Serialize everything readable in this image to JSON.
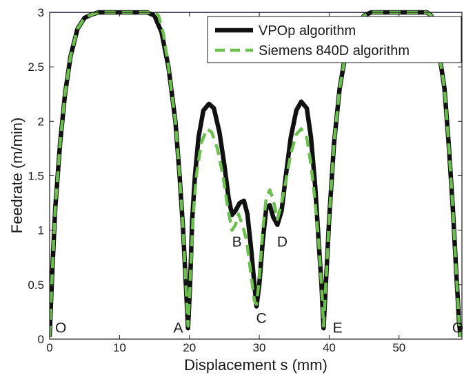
{
  "chart_data": {
    "type": "line",
    "title": "",
    "xlabel": "Displacement s (mm)",
    "ylabel": "Feedrate (m/min)",
    "xlim": [
      0,
      59
    ],
    "ylim": [
      0,
      3
    ],
    "x_ticks": [
      0,
      10,
      20,
      30,
      40,
      50
    ],
    "x_tick_labels": [
      "0",
      "10",
      "20",
      "30",
      "40",
      "50"
    ],
    "y_ticks": [
      0,
      0.5,
      1,
      1.5,
      2,
      2.5,
      3
    ],
    "y_tick_labels": [
      "0",
      "0.5",
      "1",
      "1.5",
      "2",
      "2.5",
      "3"
    ],
    "grid": false,
    "legend": "top-right",
    "reference_line": {
      "y": 3,
      "color": "#5b3fa6"
    },
    "series": [
      {
        "name": "VPOp algorithm",
        "color": "#111111",
        "dash": "solid",
        "points": [
          [
            0,
            0.02
          ],
          [
            0.3,
            0.5
          ],
          [
            0.8,
            1.2
          ],
          [
            1.5,
            1.8
          ],
          [
            2.2,
            2.25
          ],
          [
            3,
            2.6
          ],
          [
            4,
            2.85
          ],
          [
            5,
            2.95
          ],
          [
            6,
            2.98
          ],
          [
            7,
            3
          ],
          [
            10,
            3
          ],
          [
            14,
            3
          ],
          [
            15,
            2.97
          ],
          [
            16,
            2.82
          ],
          [
            17,
            2.5
          ],
          [
            18,
            2.0
          ],
          [
            18.6,
            1.5
          ],
          [
            19.1,
            1.0
          ],
          [
            19.5,
            0.5
          ],
          [
            19.8,
            0.1
          ],
          [
            20.1,
            0.5
          ],
          [
            20.4,
            1.1
          ],
          [
            20.8,
            1.5
          ],
          [
            21.3,
            1.85
          ],
          [
            22,
            2.1
          ],
          [
            22.8,
            2.16
          ],
          [
            23.5,
            2.12
          ],
          [
            24.3,
            1.9
          ],
          [
            25,
            1.6
          ],
          [
            25.6,
            1.3
          ],
          [
            26.1,
            1.14
          ],
          [
            26.6,
            1.18
          ],
          [
            27.2,
            1.25
          ],
          [
            27.8,
            1.27
          ],
          [
            28.3,
            1.15
          ],
          [
            28.8,
            0.85
          ],
          [
            29.3,
            0.5
          ],
          [
            29.6,
            0.3
          ],
          [
            30,
            0.5
          ],
          [
            30.5,
            0.9
          ],
          [
            31,
            1.2
          ],
          [
            31.5,
            1.23
          ],
          [
            32,
            1.12
          ],
          [
            32.6,
            1.05
          ],
          [
            33.2,
            1.18
          ],
          [
            33.8,
            1.5
          ],
          [
            34.5,
            1.85
          ],
          [
            35.3,
            2.1
          ],
          [
            36,
            2.18
          ],
          [
            36.8,
            2.12
          ],
          [
            37.4,
            1.85
          ],
          [
            38,
            1.4
          ],
          [
            38.5,
            0.9
          ],
          [
            38.9,
            0.5
          ],
          [
            39.2,
            0.1
          ],
          [
            39.6,
            0.6
          ],
          [
            40,
            1.1
          ],
          [
            40.7,
            1.8
          ],
          [
            41.5,
            2.3
          ],
          [
            42.3,
            2.6
          ],
          [
            43,
            2.75
          ],
          [
            44,
            2.88
          ],
          [
            45,
            2.97
          ],
          [
            46,
            3
          ],
          [
            54,
            3
          ],
          [
            54.6,
            2.97
          ],
          [
            55.2,
            2.85
          ],
          [
            55.8,
            2.6
          ],
          [
            56.5,
            2.3
          ],
          [
            57.1,
            1.8
          ],
          [
            57.7,
            1.2
          ],
          [
            58.2,
            0.6
          ],
          [
            58.6,
            0.15
          ],
          [
            58.8,
            0.02
          ]
        ]
      },
      {
        "name": "Siemens 840D algorithm",
        "color": "#6cbf4f",
        "dash": "dashed",
        "points": [
          [
            0,
            0.02
          ],
          [
            0.3,
            0.5
          ],
          [
            0.8,
            1.2
          ],
          [
            1.5,
            1.8
          ],
          [
            2.2,
            2.25
          ],
          [
            3,
            2.6
          ],
          [
            4,
            2.85
          ],
          [
            5,
            2.95
          ],
          [
            6,
            2.98
          ],
          [
            7,
            3
          ],
          [
            10,
            3
          ],
          [
            15,
            3
          ],
          [
            15.6,
            2.97
          ],
          [
            16.3,
            2.8
          ],
          [
            17,
            2.5
          ],
          [
            18,
            2.0
          ],
          [
            18.6,
            1.5
          ],
          [
            19.1,
            1.0
          ],
          [
            19.5,
            0.5
          ],
          [
            19.8,
            0.12
          ],
          [
            20.1,
            0.5
          ],
          [
            20.5,
            1.1
          ],
          [
            21,
            1.5
          ],
          [
            21.7,
            1.8
          ],
          [
            22.5,
            1.93
          ],
          [
            23.2,
            1.9
          ],
          [
            24,
            1.75
          ],
          [
            24.8,
            1.5
          ],
          [
            25.5,
            1.2
          ],
          [
            26.1,
            1.0
          ],
          [
            26.6,
            1.05
          ],
          [
            27,
            1.15
          ],
          [
            27.6,
            1.05
          ],
          [
            28.2,
            0.9
          ],
          [
            28.8,
            0.6
          ],
          [
            29.3,
            0.35
          ],
          [
            29.6,
            0.32
          ],
          [
            30,
            0.55
          ],
          [
            30.5,
            1.0
          ],
          [
            31,
            1.3
          ],
          [
            31.5,
            1.37
          ],
          [
            32,
            1.28
          ],
          [
            32.6,
            1.1
          ],
          [
            33.2,
            1.25
          ],
          [
            33.8,
            1.45
          ],
          [
            34.5,
            1.7
          ],
          [
            35.3,
            1.88
          ],
          [
            36,
            1.93
          ],
          [
            36.8,
            1.85
          ],
          [
            37.4,
            1.6
          ],
          [
            38,
            1.25
          ],
          [
            38.5,
            0.9
          ],
          [
            38.9,
            0.5
          ],
          [
            39.2,
            0.12
          ],
          [
            39.6,
            0.6
          ],
          [
            40,
            1.1
          ],
          [
            40.7,
            1.8
          ],
          [
            41.5,
            2.3
          ],
          [
            42.3,
            2.6
          ],
          [
            43,
            2.75
          ],
          [
            44,
            2.88
          ],
          [
            45,
            2.97
          ],
          [
            46,
            3
          ],
          [
            54,
            3
          ],
          [
            54.6,
            2.97
          ],
          [
            55.2,
            2.85
          ],
          [
            55.8,
            2.6
          ],
          [
            56.5,
            2.3
          ],
          [
            57.1,
            1.8
          ],
          [
            57.7,
            1.2
          ],
          [
            58.2,
            0.6
          ],
          [
            58.6,
            0.15
          ],
          [
            58.8,
            0.02
          ]
        ]
      }
    ],
    "annotations": [
      {
        "text": "O",
        "x": 1.6,
        "y": 0.06
      },
      {
        "text": "A",
        "x": 18.4,
        "y": 0.06
      },
      {
        "text": "B",
        "x": 26.8,
        "y": 0.85
      },
      {
        "text": "C",
        "x": 30.3,
        "y": 0.15
      },
      {
        "text": "D",
        "x": 33.3,
        "y": 0.85
      },
      {
        "text": "E",
        "x": 41.2,
        "y": 0.06
      },
      {
        "text": "O",
        "x": 59.8,
        "y": 0.06
      }
    ]
  }
}
